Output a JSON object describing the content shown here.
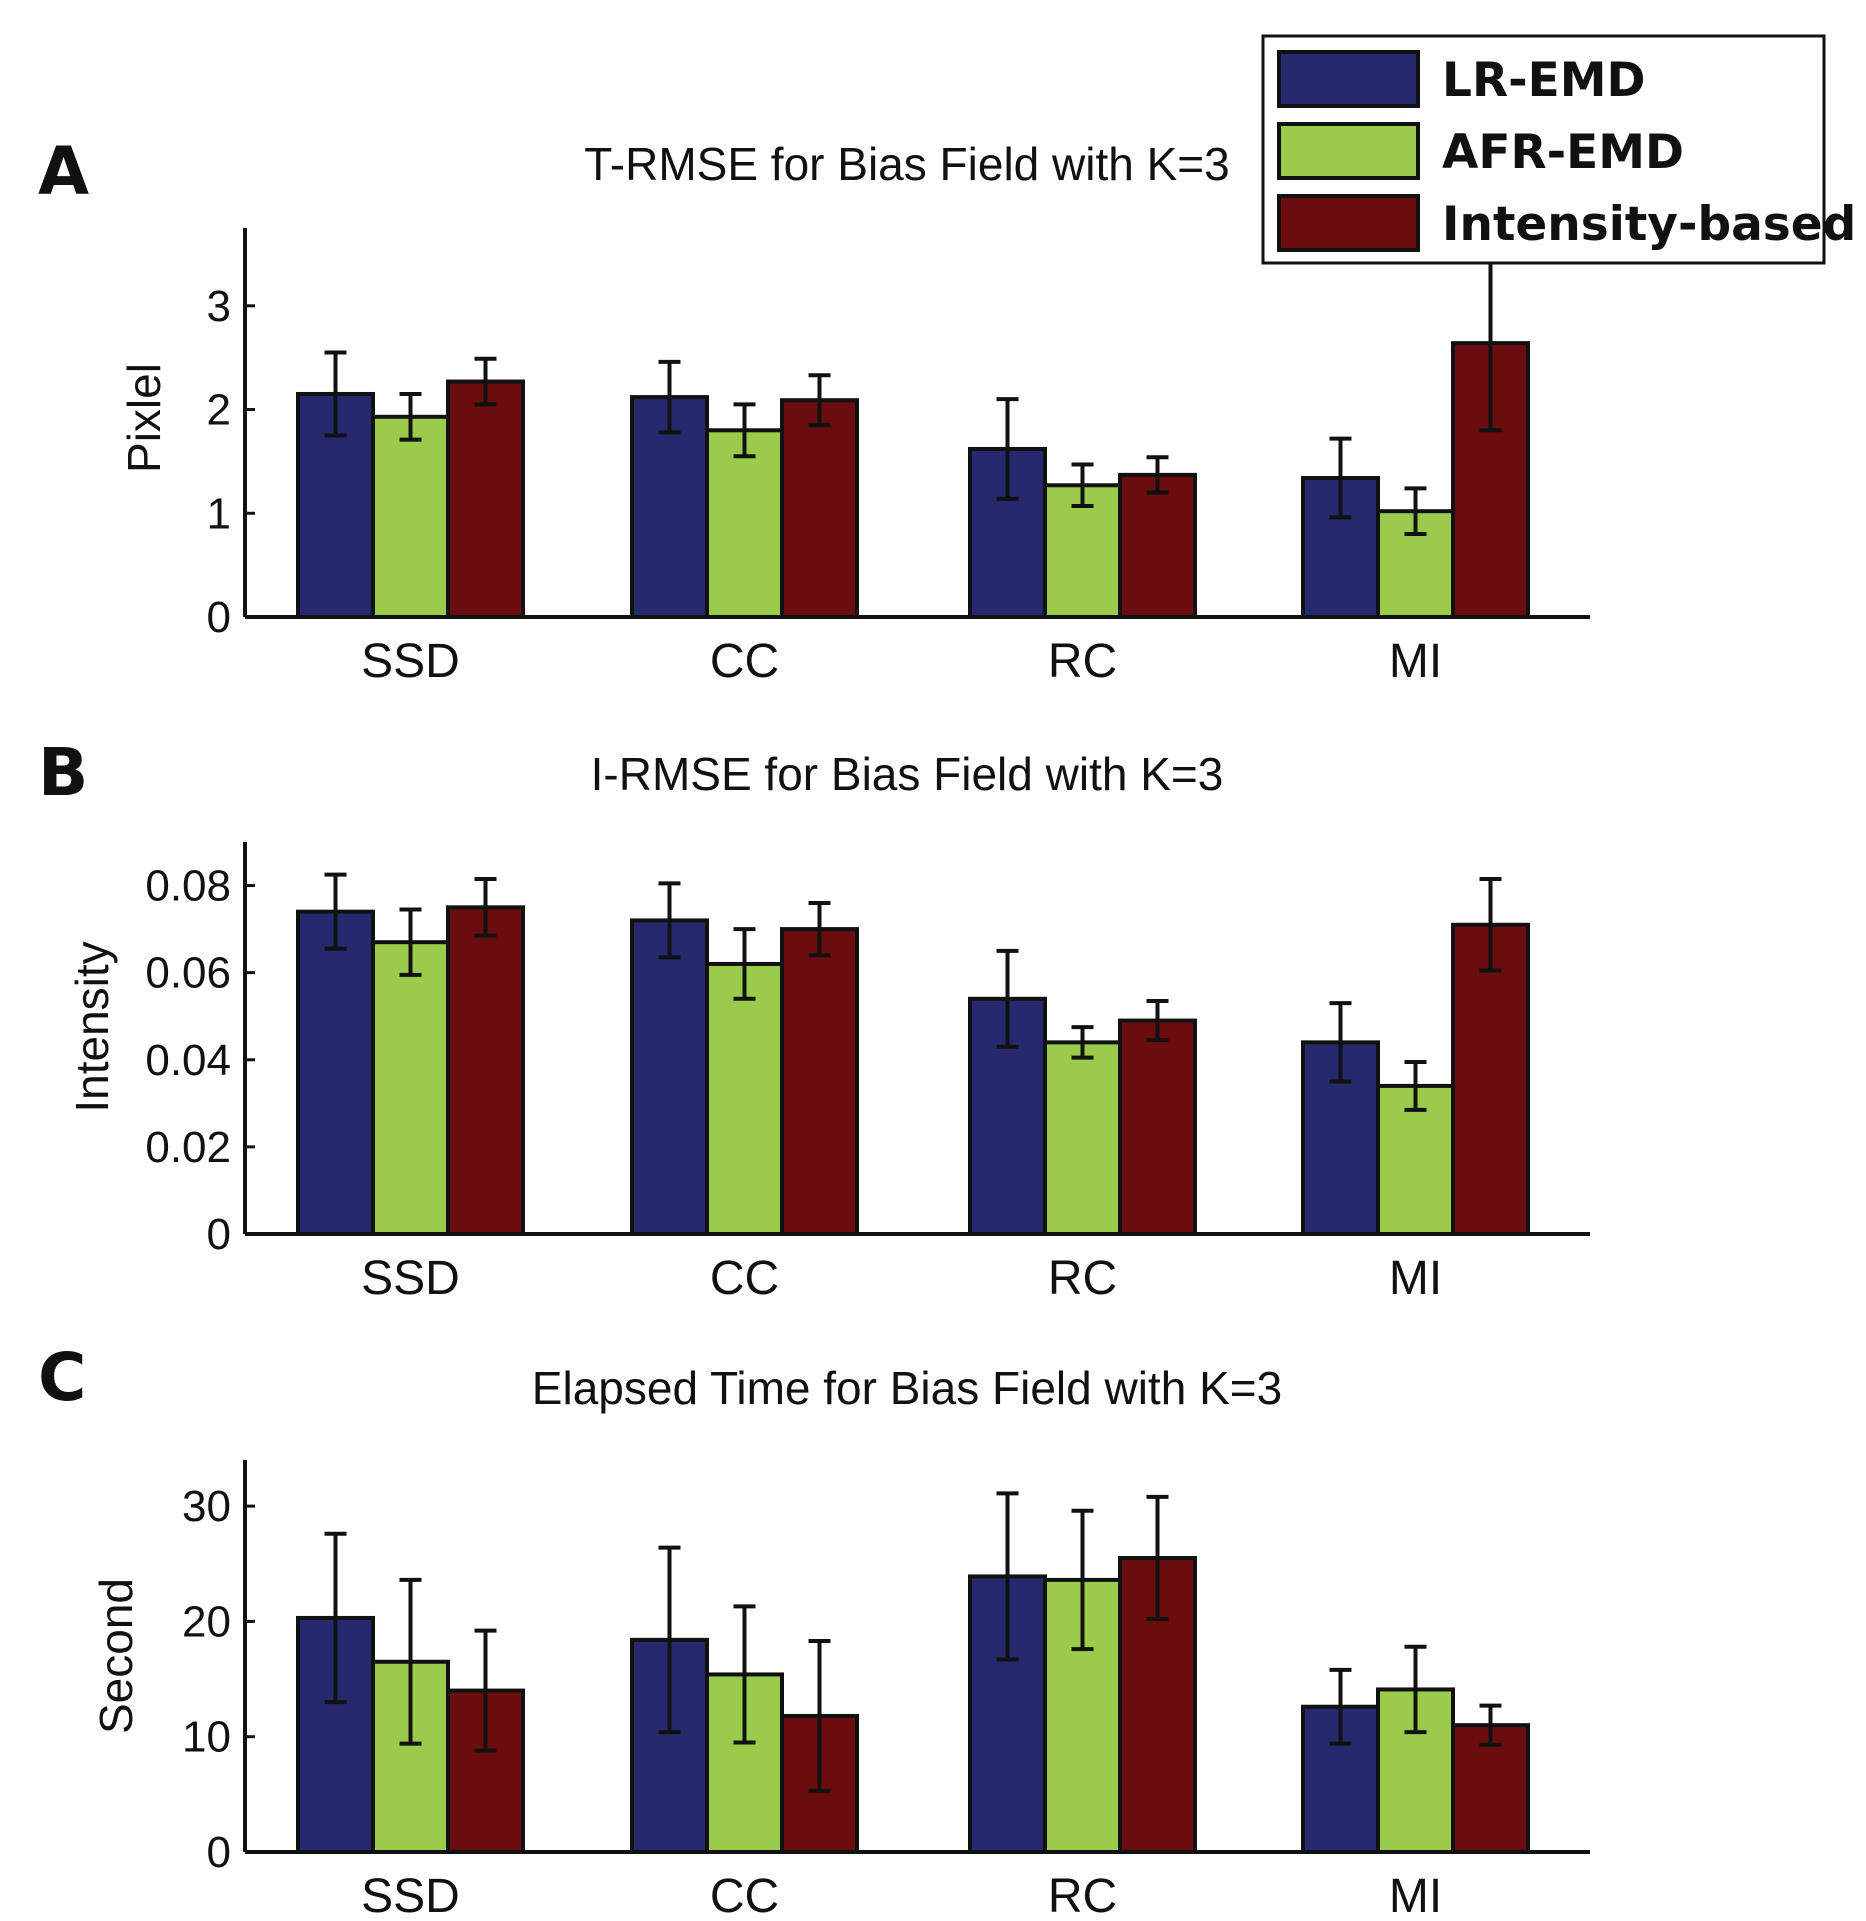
{
  "colors": {
    "LR-EMD": "#252a6e",
    "AFR-EMD": "#9bcb4b",
    "Intensity-based": "#6b0d0e"
  },
  "legend": {
    "items": [
      "LR-EMD",
      "AFR-EMD",
      "Intensity-based"
    ]
  },
  "chart_data": [
    {
      "type": "bar",
      "panel": "A",
      "title": "T-RMSE for Bias Field with K=3",
      "xlabel": "",
      "ylabel": "Pixlel",
      "ylim": [
        0,
        3.75
      ],
      "yticks": [
        0,
        1,
        2,
        3
      ],
      "categories": [
        "SSD",
        "CC",
        "RC",
        "MI"
      ],
      "series": [
        {
          "name": "LR-EMD",
          "values": [
            2.15,
            2.12,
            1.62,
            1.34
          ],
          "errors": [
            0.4,
            0.34,
            0.48,
            0.38
          ]
        },
        {
          "name": "AFR-EMD",
          "values": [
            1.93,
            1.8,
            1.27,
            1.02
          ],
          "errors": [
            0.22,
            0.25,
            0.2,
            0.22
          ]
        },
        {
          "name": "Intensity-based",
          "values": [
            2.27,
            2.09,
            1.37,
            2.64
          ],
          "errors": [
            0.22,
            0.24,
            0.17,
            0.84
          ]
        }
      ]
    },
    {
      "type": "bar",
      "panel": "B",
      "title": "I-RMSE for Bias Field with K=3",
      "xlabel": "",
      "ylabel": "Intensity",
      "ylim": [
        0,
        0.09
      ],
      "yticks": [
        0,
        0.02,
        0.04,
        0.06,
        0.08
      ],
      "ytick_labels": [
        "0",
        "0.02",
        "0.04",
        "0.06",
        "0.08"
      ],
      "categories": [
        "SSD",
        "CC",
        "RC",
        "MI"
      ],
      "series": [
        {
          "name": "LR-EMD",
          "values": [
            0.074,
            0.072,
            0.054,
            0.044
          ],
          "errors": [
            0.0085,
            0.0085,
            0.011,
            0.009
          ]
        },
        {
          "name": "AFR-EMD",
          "values": [
            0.067,
            0.062,
            0.044,
            0.034
          ],
          "errors": [
            0.0075,
            0.008,
            0.0035,
            0.0055
          ]
        },
        {
          "name": "Intensity-based",
          "values": [
            0.075,
            0.07,
            0.049,
            0.071
          ],
          "errors": [
            0.0065,
            0.006,
            0.0045,
            0.0105
          ]
        }
      ]
    },
    {
      "type": "bar",
      "panel": "C",
      "title": "Elapsed Time for Bias Field with K=3",
      "xlabel": "",
      "ylabel": "Second",
      "ylim": [
        0,
        34
      ],
      "yticks": [
        0,
        10,
        20,
        30
      ],
      "categories": [
        "SSD",
        "CC",
        "RC",
        "MI"
      ],
      "series": [
        {
          "name": "LR-EMD",
          "values": [
            20.3,
            18.4,
            23.9,
            12.6
          ],
          "errors": [
            7.3,
            8.0,
            7.2,
            3.2
          ]
        },
        {
          "name": "AFR-EMD",
          "values": [
            16.5,
            15.4,
            23.6,
            14.1
          ],
          "errors": [
            7.1,
            5.9,
            6.0,
            3.7
          ]
        },
        {
          "name": "Intensity-based",
          "values": [
            14.0,
            11.8,
            25.5,
            11.0
          ],
          "errors": [
            5.2,
            6.5,
            5.3,
            1.7
          ]
        }
      ]
    }
  ]
}
